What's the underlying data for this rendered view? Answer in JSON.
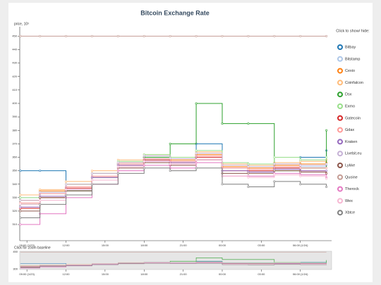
{
  "chart_data": {
    "type": "line",
    "title": "Bitcoin Exchange Rate",
    "y_label": "price, 10³",
    "legend_title": "Click to show/ hide:",
    "navigator_label": "Click for zoom baseline",
    "x": [
      8.5,
      10,
      12,
      14,
      16,
      18,
      20,
      22,
      24,
      26,
      28,
      30,
      32
    ],
    "xlim": [
      8.45,
      32.4
    ],
    "xticks": [
      {
        "value": 9,
        "label": "09:00 (1/23)"
      },
      {
        "value": 12,
        "label": "12:00"
      },
      {
        "value": 15,
        "label": "15:00"
      },
      {
        "value": 18,
        "label": "18:00"
      },
      {
        "value": 21,
        "label": "21:00"
      },
      {
        "value": 24,
        "label": "00:00"
      },
      {
        "value": 27,
        "label": "03:00"
      },
      {
        "value": 30,
        "label": "06:00 (1/24)"
      }
    ],
    "ylim": [
      298,
      457
    ],
    "yticks": [
      310,
      320,
      330,
      340,
      350,
      360,
      370,
      380,
      390,
      400,
      410,
      420,
      430,
      440,
      450
    ],
    "navigator_ylim": [
      298,
      457
    ],
    "navigator_yticks": [
      300,
      450
    ],
    "grid": false,
    "legend": "right",
    "series": [
      {
        "name": "Bitbay",
        "color": "#1f77b4",
        "values": [
          350,
          350,
          335,
          345,
          355,
          360,
          355,
          370,
          355,
          355,
          355,
          360,
          365
        ]
      },
      {
        "name": "Bitstamp",
        "color": "#aec7e8",
        "values": [
          330,
          333,
          338,
          345,
          355,
          358,
          357,
          360,
          352,
          350,
          352,
          353,
          354
        ]
      },
      {
        "name": "Cexio",
        "color": "#ff7f0e",
        "values": [
          328,
          335,
          340,
          348,
          356,
          360,
          358,
          362,
          353,
          352,
          354,
          355,
          356
        ]
      },
      {
        "name": "Coinfalcon",
        "color": "#ffbb78",
        "values": [
          332,
          336,
          342,
          350,
          358,
          362,
          360,
          364,
          355,
          354,
          356,
          357,
          358
        ]
      },
      {
        "name": "Dsx",
        "color": "#2ca02c",
        "values": [
          325,
          330,
          335,
          345,
          355,
          360,
          370,
          400,
          385,
          385,
          350,
          352,
          380
        ]
      },
      {
        "name": "Exmo",
        "color": "#98df8a",
        "values": [
          330,
          334,
          340,
          348,
          357,
          362,
          360,
          365,
          356,
          355,
          360,
          358,
          360
        ]
      },
      {
        "name": "Gatecoin",
        "color": "#d62728",
        "values": [
          322,
          330,
          337,
          345,
          354,
          358,
          356,
          360,
          350,
          350,
          352,
          350,
          348
        ]
      },
      {
        "name": "Gdax",
        "color": "#ff9896",
        "values": [
          326,
          333,
          338,
          346,
          355,
          359,
          357,
          361,
          352,
          351,
          353,
          352,
          352
        ]
      },
      {
        "name": "Kraken",
        "color": "#9467bd",
        "values": [
          323,
          331,
          336,
          345,
          354,
          357,
          356,
          358,
          350,
          349,
          351,
          350,
          350
        ]
      },
      {
        "name": "Livebit.eu",
        "color": "#c5b0d5",
        "values": [
          328,
          334,
          340,
          348,
          356,
          361,
          359,
          363,
          354,
          353,
          355,
          354,
          355
        ]
      },
      {
        "name": "Lykke",
        "color": "#8c564b",
        "values": [
          320,
          330,
          335,
          343,
          352,
          356,
          354,
          358,
          348,
          348,
          350,
          349,
          348
        ]
      },
      {
        "name": "Quoine",
        "color": "#c49c94",
        "values": [
          450,
          450,
          450,
          450,
          450,
          450,
          450,
          450,
          450,
          450,
          450,
          450,
          450
        ]
      },
      {
        "name": "Therock",
        "color": "#e377c2",
        "values": [
          310,
          318,
          330,
          340,
          350,
          354,
          352,
          356,
          346,
          346,
          348,
          347,
          345
        ]
      },
      {
        "name": "Wex",
        "color": "#f7b6d2",
        "values": [
          325,
          328,
          336,
          343,
          353,
          357,
          355,
          358,
          346,
          345,
          347,
          346,
          344
        ]
      },
      {
        "name": "Xbtce",
        "color": "#7f7f7f",
        "values": [
          315,
          325,
          332,
          340,
          348,
          352,
          350,
          352,
          340,
          338,
          342,
          340,
          338
        ]
      }
    ]
  }
}
